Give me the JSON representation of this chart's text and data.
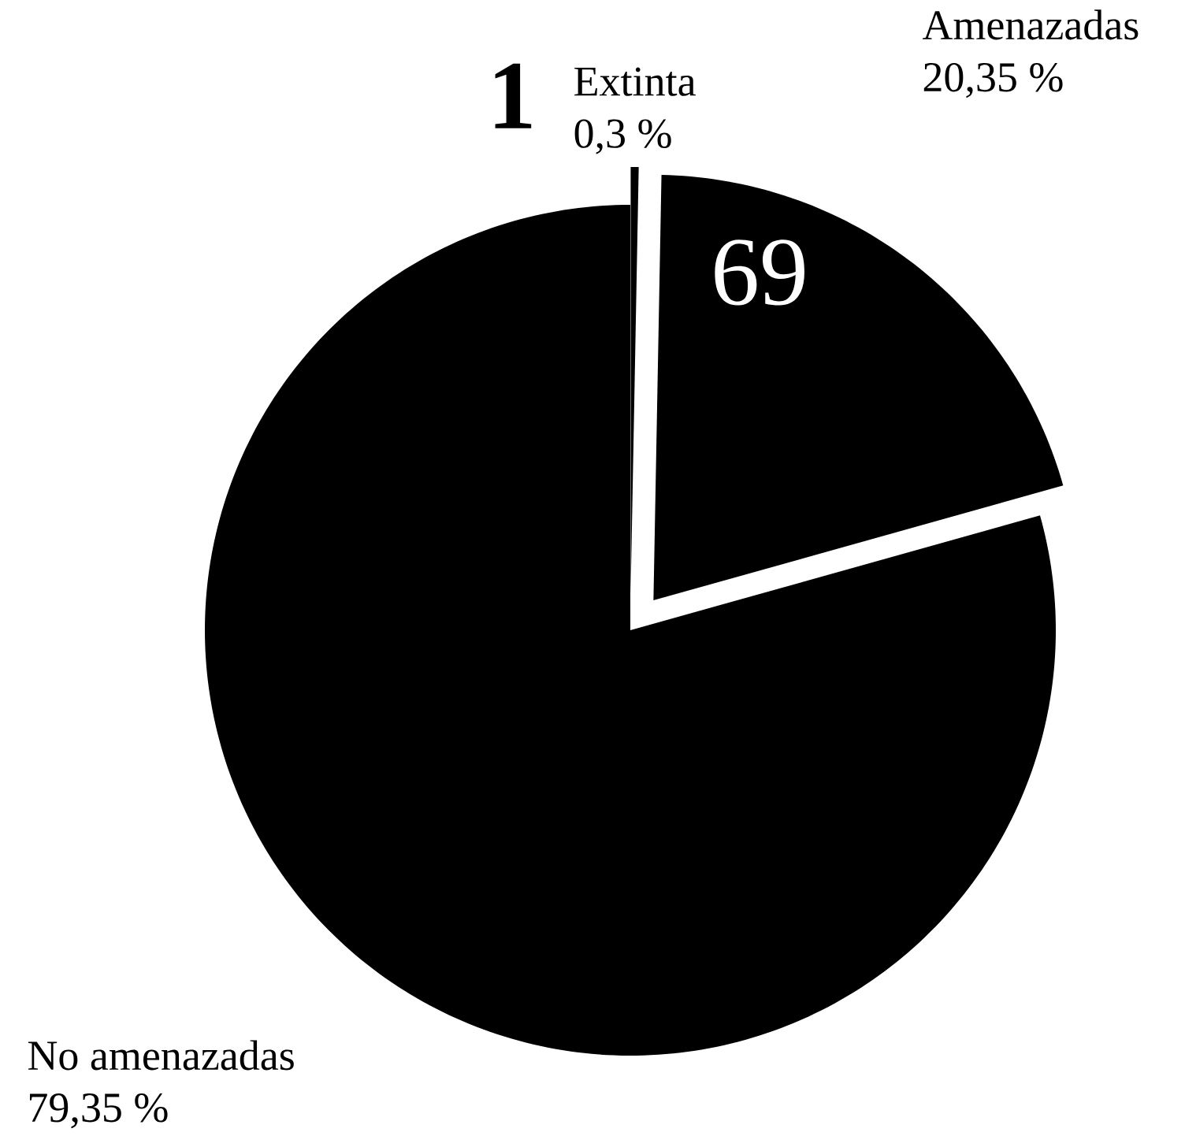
{
  "chart_data": {
    "type": "pie",
    "categories": [
      "Extinta",
      "Amenazadas",
      "No amenazadas"
    ],
    "values": [
      0.3,
      20.35,
      79.35
    ],
    "colors": [
      "#000000",
      "#000000",
      "#000000"
    ],
    "value_labels": [
      "0,3 %",
      "20,35 %",
      "79,35 %"
    ],
    "annotations": [
      {
        "text": "1",
        "x": "Extinta"
      },
      {
        "text": "69",
        "x": "Amenazadas"
      }
    ]
  }
}
